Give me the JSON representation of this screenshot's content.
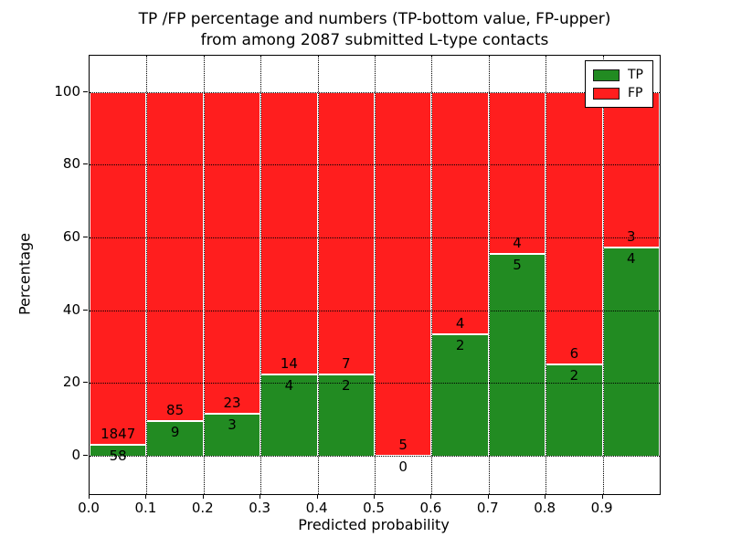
{
  "chart_data": {
    "type": "bar",
    "stacked": true,
    "unit": "percent",
    "title_lines": [
      "TP /FP percentage and numbers (TP-bottom value, FP-upper)",
      "from among 2087 submitted L-type contacts"
    ],
    "xlabel": "Predicted probability",
    "ylabel": "Percentage",
    "total_contacts": 2087,
    "bin_width": 0.1,
    "x_bins": [
      0.0,
      0.1,
      0.2,
      0.3,
      0.4,
      0.5,
      0.6,
      0.7,
      0.8,
      0.9
    ],
    "xtick_labels": [
      "0.0",
      "0.1",
      "0.2",
      "0.3",
      "0.4",
      "0.5",
      "0.6",
      "0.7",
      "0.8",
      "0.9"
    ],
    "ytick_values": [
      0,
      20,
      40,
      60,
      80,
      100
    ],
    "ytick_labels": [
      "0",
      "20",
      "40",
      "60",
      "80",
      "100"
    ],
    "xlim": [
      0.0,
      1.0
    ],
    "ylim": [
      -10.5,
      110
    ],
    "grid": "dotted",
    "legend_position": "upper right",
    "legend": [
      "TP",
      "FP"
    ],
    "series": [
      {
        "name": "TP",
        "color": "#228b22",
        "counts": [
          58,
          9,
          3,
          4,
          2,
          0,
          2,
          5,
          2,
          4
        ]
      },
      {
        "name": "FP",
        "color": "#ff1e1e",
        "counts": [
          1847,
          85,
          23,
          14,
          7,
          5,
          4,
          4,
          6,
          3
        ]
      }
    ],
    "tp_percent_of_bin": [
      3.0,
      9.6,
      11.5,
      22.2,
      22.2,
      0.0,
      33.3,
      55.6,
      25.0,
      57.1
    ]
  }
}
